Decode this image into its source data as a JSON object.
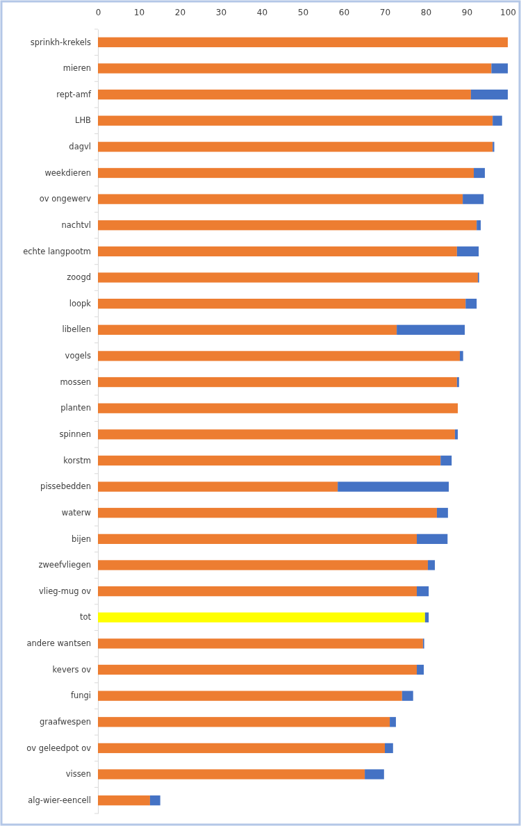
{
  "chart_data": {
    "type": "bar",
    "orientation": "horizontal",
    "stacked": true,
    "categories": [
      "sprinkh-krekels",
      "mieren",
      "rept-amf",
      "LHB",
      "dagvl",
      "weekdieren",
      "ov ongewerv",
      "nachtvl",
      "echte langpootm",
      "zoogd",
      "loopk",
      "libellen",
      "vogels",
      "mossen",
      "planten",
      "spinnen",
      "korstm",
      "pissebedden",
      "waterw",
      "bijen",
      "zweefvliegen",
      "vlieg-mug ov",
      "tot",
      "andere wantsen",
      "kevers ov",
      "fungi",
      "graafwespen",
      "ov geleedpot ov",
      "vissen",
      "alg-wier-eencell"
    ],
    "series": [
      {
        "colors": [
          "#ed7d31",
          "#ed7d31",
          "#ed7d31",
          "#ed7d31",
          "#ed7d31",
          "#ed7d31",
          "#ed7d31",
          "#ed7d31",
          "#ed7d31",
          "#ed7d31",
          "#ed7d31",
          "#ed7d31",
          "#ed7d31",
          "#ed7d31",
          "#ed7d31",
          "#ed7d31",
          "#ed7d31",
          "#ed7d31",
          "#ed7d31",
          "#ed7d31",
          "#ed7d31",
          "#ed7d31",
          "#ffff00",
          "#ed7d31",
          "#ed7d31",
          "#ed7d31",
          "#ed7d31",
          "#ed7d31",
          "#ed7d31",
          "#ed7d31"
        ],
        "values": [
          100,
          96,
          91,
          96.3,
          96.3,
          91.7,
          89,
          92.4,
          87.6,
          92.7,
          89.7,
          72.9,
          88.3,
          87.6,
          87.8,
          87.1,
          83.6,
          58.5,
          82.7,
          77.8,
          80.5,
          77.8,
          79.8,
          79.3,
          77.8,
          74.2,
          71.2,
          70,
          65.1,
          12.7
        ]
      },
      {
        "color": "#4472c4",
        "values": [
          0,
          4,
          9,
          2.3,
          0.4,
          2.7,
          5.1,
          1,
          5.3,
          0.3,
          2.7,
          16.6,
          0.8,
          0.5,
          0,
          0.7,
          2.7,
          27.1,
          2.7,
          7.5,
          1.7,
          2.9,
          0.9,
          0.3,
          1.7,
          2.7,
          1.5,
          2,
          4.7,
          2.5
        ]
      }
    ],
    "xlim": [
      0,
      100
    ],
    "xticks": [
      0,
      10,
      20,
      30,
      40,
      50,
      60,
      70,
      80,
      90,
      100
    ]
  }
}
